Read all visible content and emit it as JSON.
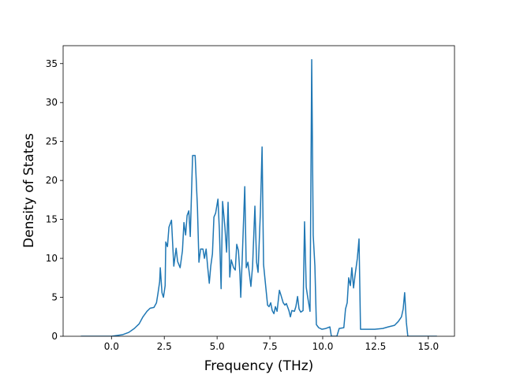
{
  "chart_data": {
    "type": "line",
    "x_label": "Frequency (THz)",
    "y_label": "Density of States",
    "x": [
      -1.45,
      0,
      0.52,
      0.82,
      1.08,
      1.31,
      1.49,
      1.68,
      1.83,
      2.01,
      2.13,
      2.2,
      2.28,
      2.31,
      2.39,
      2.46,
      2.54,
      2.57,
      2.65,
      2.72,
      2.84,
      2.95,
      3.06,
      3.13,
      3.25,
      3.36,
      3.43,
      3.51,
      3.58,
      3.66,
      3.73,
      3.84,
      3.96,
      4.07,
      4.14,
      4.22,
      4.33,
      4.4,
      4.48,
      4.55,
      4.63,
      4.7,
      4.78,
      4.85,
      4.93,
      5.04,
      5.11,
      5.19,
      5.26,
      5.37,
      5.45,
      5.52,
      5.6,
      5.67,
      5.78,
      5.86,
      5.93,
      6.01,
      6.08,
      6.12,
      6.19,
      6.31,
      6.38,
      6.46,
      6.53,
      6.6,
      6.68,
      6.79,
      6.87,
      6.94,
      7.05,
      7.13,
      7.2,
      7.28,
      7.39,
      7.46,
      7.54,
      7.61,
      7.69,
      7.76,
      7.84,
      7.95,
      8.02,
      8.13,
      8.21,
      8.28,
      8.4,
      8.47,
      8.54,
      8.66,
      8.73,
      8.81,
      8.88,
      8.96,
      9.07,
      9.14,
      9.22,
      9.29,
      9.4,
      9.48,
      9.55,
      9.63,
      9.7,
      9.81,
      9.96,
      10.15,
      10.34,
      10.41,
      10.67,
      10.78,
      11.0,
      11.08,
      11.16,
      11.23,
      11.31,
      11.38,
      11.46,
      11.53,
      11.64,
      11.72,
      11.79,
      12.09,
      12.46,
      12.84,
      13.1,
      13.4,
      13.58,
      13.73,
      13.81,
      13.88,
      13.96,
      14.03,
      14.51,
      15.41
    ],
    "series": [
      {
        "color": "#1f77b4",
        "values": [
          0,
          0,
          0.2,
          0.5,
          1.0,
          1.6,
          2.5,
          3.2,
          3.6,
          3.7,
          4.3,
          5.5,
          7.0,
          8.8,
          5.6,
          5.0,
          6.5,
          12.1,
          11.5,
          14.0,
          14.9,
          9.0,
          11.3,
          9.6,
          8.8,
          11.0,
          14.6,
          13.0,
          15.5,
          16.1,
          12.8,
          23.2,
          23.2,
          16.5,
          9.5,
          11.2,
          11.2,
          10.0,
          11.2,
          9.0,
          6.8,
          9.0,
          10.6,
          15.3,
          15.8,
          17.6,
          13.5,
          6.1,
          17.3,
          14.0,
          10.8,
          17.2,
          7.6,
          9.8,
          8.8,
          8.5,
          11.8,
          11.0,
          8.0,
          5.0,
          10.0,
          19.2,
          8.8,
          9.5,
          8.0,
          6.4,
          9.0,
          16.7,
          9.5,
          8.2,
          16.0,
          24.3,
          9.2,
          7.0,
          4.0,
          3.8,
          4.3,
          3.3,
          2.9,
          3.8,
          3.2,
          5.9,
          5.3,
          4.3,
          4.0,
          4.2,
          3.3,
          2.5,
          3.3,
          3.2,
          3.8,
          5.1,
          3.5,
          3.1,
          3.3,
          14.7,
          6.3,
          5.0,
          3.2,
          35.5,
          13.0,
          9.0,
          1.5,
          1.1,
          0.9,
          1.0,
          1.2,
          0,
          0,
          1.0,
          1.1,
          3.5,
          4.3,
          7.5,
          6.5,
          8.8,
          6.2,
          7.8,
          10.0,
          12.5,
          0.9,
          0.9,
          0.9,
          1.0,
          1.2,
          1.4,
          1.9,
          2.5,
          3.5,
          5.6,
          1.8,
          0,
          0,
          0
        ]
      }
    ],
    "xlim": [
      -2.29,
      16.24
    ],
    "ylim": [
      0,
      37.3
    ],
    "xticks": [
      {
        "value": 0,
        "label": "0.0"
      },
      2.5,
      {
        "value": 5,
        "label": "5.0"
      },
      7.5,
      {
        "value": 10,
        "label": "10.0"
      },
      12.5,
      {
        "value": 15,
        "label": "15.0"
      }
    ],
    "yticks": [
      0,
      5,
      10,
      15,
      20,
      25,
      30,
      35
    ]
  }
}
